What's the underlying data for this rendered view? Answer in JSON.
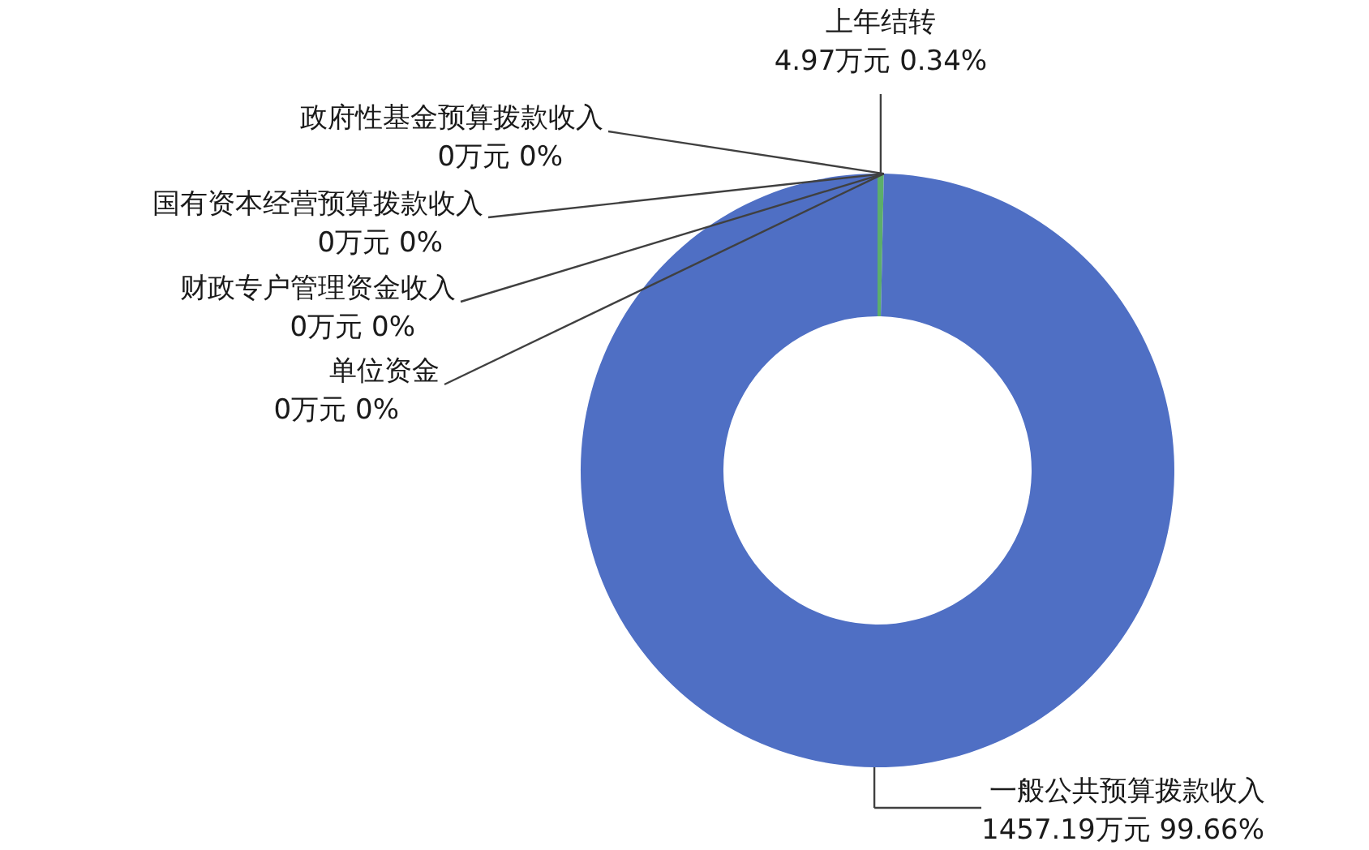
{
  "chart_data": {
    "type": "donut",
    "categories": [
      "上年结转",
      "政府性基金预算拨款收入",
      "国有资本经营预算拨款收入",
      "财政专户管理资金收入",
      "单位资金",
      "一般公共预算拨款收入"
    ],
    "values": [
      4.97,
      0,
      0,
      0,
      0,
      1457.19
    ],
    "value_labels": [
      "4.97万元 0.34%",
      "0万元 0%",
      "0万元 0%",
      "0万元 0%",
      "0万元 0%",
      "1457.19万元 99.66%"
    ],
    "colors": [
      "#5cae6a",
      "#a5a5a5",
      "#ffc000",
      "#5b9bd5",
      "#ed7d31",
      "#4f6fc4"
    ]
  }
}
